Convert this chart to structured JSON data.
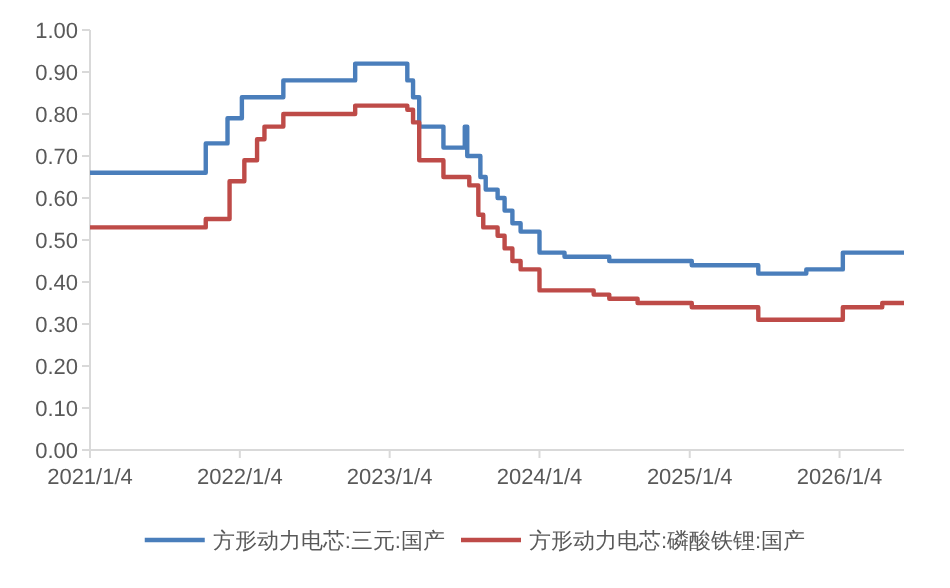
{
  "chart_data": {
    "type": "step",
    "xlim": [
      "2021-01-04",
      "2026-06-10"
    ],
    "xticks": [
      {
        "value": "2021-01-04",
        "label": "2021/1/4"
      },
      {
        "value": "2022-01-04",
        "label": "2022/1/4"
      },
      {
        "value": "2023-01-04",
        "label": "2023/1/4"
      },
      {
        "value": "2024-01-04",
        "label": "2024/1/4"
      },
      {
        "value": "2025-01-04",
        "label": "2025/1/4"
      },
      {
        "value": "2026-01-04",
        "label": "2026/1/4"
      }
    ],
    "ylim": [
      0,
      1
    ],
    "yticks": [
      {
        "value": 0,
        "label": "0.00"
      },
      {
        "value": 0.1,
        "label": "0.10"
      },
      {
        "value": 0.2,
        "label": "0.20"
      },
      {
        "value": 0.3,
        "label": "0.30"
      },
      {
        "value": 0.4,
        "label": "0.40"
      },
      {
        "value": 0.5,
        "label": "0.50"
      },
      {
        "value": 0.6,
        "label": "0.60"
      },
      {
        "value": 0.7,
        "label": "0.70"
      },
      {
        "value": 0.8,
        "label": "0.80"
      },
      {
        "value": 0.9,
        "label": "0.90"
      },
      {
        "value": 1,
        "label": "1.00"
      }
    ],
    "grid": false,
    "legend": "bottom",
    "series": [
      {
        "name": "方形动力电芯:三元:国产",
        "color": "#4a7ebb",
        "x": [
          "2021-01-04",
          "2021-10-13",
          "2021-12-05",
          "2022-01-09",
          "2022-04-20",
          "2022-10-12",
          "2023-02-16",
          "2023-03-02",
          "2023-03-17",
          "2023-05-15",
          "2023-07-06",
          "2023-07-12",
          "2023-08-13",
          "2023-08-26",
          "2023-09-24",
          "2023-10-11",
          "2023-10-30",
          "2023-11-19",
          "2024-01-04",
          "2024-03-05",
          "2024-06-22",
          "2025-01-09",
          "2025-06-20",
          "2025-10-15",
          "2026-01-12",
          "2026-06-10"
        ],
        "values": [
          0.66,
          0.73,
          0.79,
          0.84,
          0.88,
          0.92,
          0.88,
          0.84,
          0.77,
          0.72,
          0.77,
          0.7,
          0.65,
          0.62,
          0.6,
          0.57,
          0.54,
          0.52,
          0.47,
          0.46,
          0.45,
          0.44,
          0.42,
          0.43,
          0.47,
          0.47
        ]
      },
      {
        "name": "方形动力电芯:磷酸铁锂:国产",
        "color": "#be4b48",
        "x": [
          "2021-01-04",
          "2021-10-13",
          "2021-12-10",
          "2022-01-15",
          "2022-02-15",
          "2022-03-05",
          "2022-04-20",
          "2022-10-12",
          "2023-02-16",
          "2023-03-02",
          "2023-03-17",
          "2023-05-15",
          "2023-07-17",
          "2023-08-08",
          "2023-08-20",
          "2023-09-24",
          "2023-10-11",
          "2023-10-30",
          "2023-11-19",
          "2024-01-04",
          "2024-05-15",
          "2024-06-22",
          "2024-08-30",
          "2025-01-09",
          "2025-06-20",
          "2026-01-12",
          "2026-04-18",
          "2026-06-10"
        ],
        "values": [
          0.53,
          0.55,
          0.64,
          0.69,
          0.74,
          0.77,
          0.8,
          0.82,
          0.81,
          0.78,
          0.69,
          0.65,
          0.63,
          0.56,
          0.53,
          0.51,
          0.48,
          0.45,
          0.43,
          0.38,
          0.37,
          0.36,
          0.35,
          0.34,
          0.31,
          0.34,
          0.35,
          0.35
        ]
      }
    ]
  }
}
